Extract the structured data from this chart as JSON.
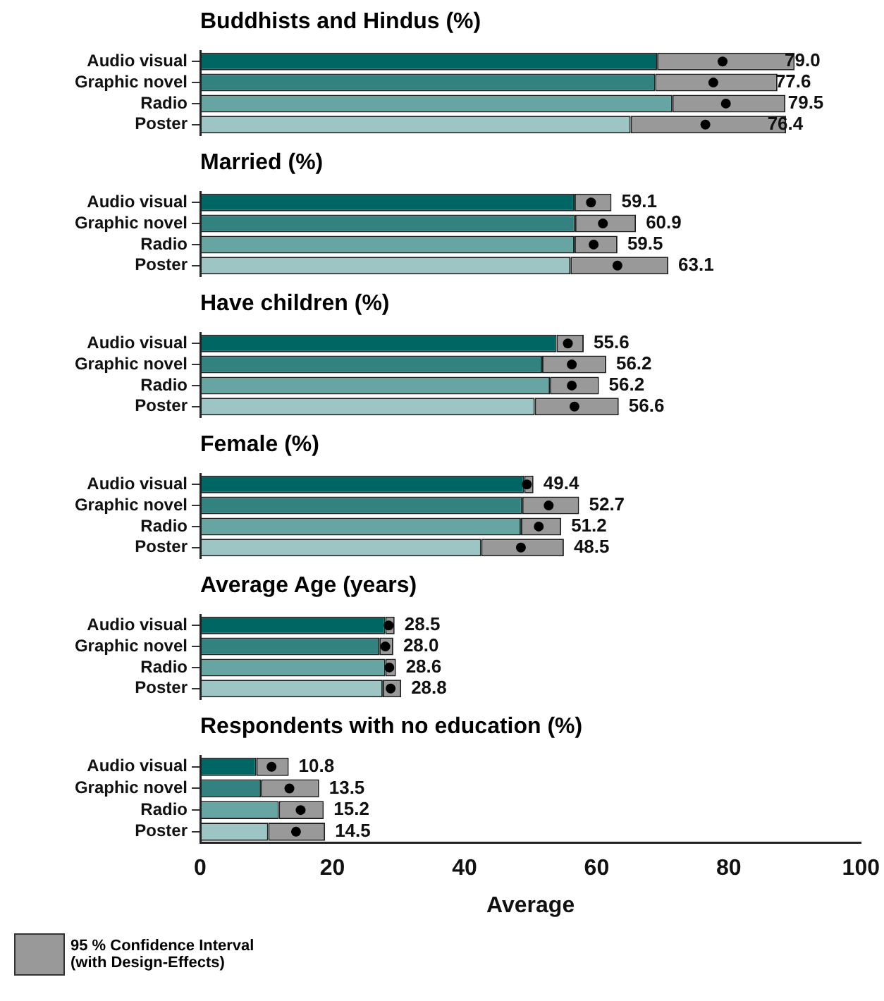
{
  "chart_data": [
    {
      "type": "bar",
      "orientation": "horizontal",
      "stacked": true,
      "title": "Buddhists and Hindus (%)",
      "categories": [
        "Audio visual",
        "Graphic novel",
        "Radio",
        "Poster"
      ],
      "xlim": [
        0,
        100
      ],
      "tick_labels": "y",
      "series": [
        {
          "values": [
            69.1,
            68.8,
            71.4,
            65.1
          ],
          "colors": [
            "#006664",
            "#33827f",
            "#66a5a2",
            "#9cc5c3"
          ]
        },
        {
          "color": "#999999",
          "values": [
            20.8,
            18.5,
            17.1,
            23.5
          ]
        },
        {
          "type": "scatter",
          "color": "#000000",
          "marker": "circle",
          "values": [
            79.0,
            77.6,
            79.5,
            76.4
          ],
          "value_labels": [
            "79.0",
            "77.6",
            "79.5",
            "76.4"
          ]
        }
      ]
    },
    {
      "type": "bar",
      "orientation": "horizontal",
      "stacked": true,
      "title": "Married (%)",
      "categories": [
        "Audio visual",
        "Graphic novel",
        "Radio",
        "Poster"
      ],
      "xlim": [
        0,
        100
      ],
      "tick_labels": "y",
      "series": [
        {
          "values": [
            56.6,
            56.7,
            56.6,
            56.0
          ],
          "colors": [
            "#006664",
            "#33827f",
            "#66a5a2",
            "#9cc5c3"
          ]
        },
        {
          "color": "#999999",
          "values": [
            5.6,
            9.2,
            6.5,
            14.8
          ]
        },
        {
          "type": "scatter",
          "color": "#000000",
          "marker": "circle",
          "values": [
            59.1,
            60.9,
            59.5,
            63.1
          ],
          "value_labels": [
            "59.1",
            "60.9",
            "59.5",
            "63.1"
          ]
        }
      ]
    },
    {
      "type": "bar",
      "orientation": "horizontal",
      "stacked": true,
      "title": "Have children (%)",
      "categories": [
        "Audio visual",
        "Graphic novel",
        "Radio",
        "Poster"
      ],
      "xlim": [
        0,
        100
      ],
      "tick_labels": "y",
      "series": [
        {
          "values": [
            53.9,
            51.7,
            52.9,
            50.6
          ],
          "colors": [
            "#006664",
            "#33827f",
            "#66a5a2",
            "#9cc5c3"
          ]
        },
        {
          "color": "#999999",
          "values": [
            4.1,
            9.7,
            7.4,
            12.7
          ]
        },
        {
          "type": "scatter",
          "color": "#000000",
          "marker": "circle",
          "values": [
            55.6,
            56.2,
            56.2,
            56.6
          ],
          "value_labels": [
            "55.6",
            "56.2",
            "56.2",
            "56.6"
          ]
        }
      ]
    },
    {
      "type": "bar",
      "orientation": "horizontal",
      "stacked": true,
      "title": "Female (%)",
      "categories": [
        "Audio visual",
        "Graphic novel",
        "Radio",
        "Poster"
      ],
      "xlim": [
        0,
        100
      ],
      "tick_labels": "y",
      "series": [
        {
          "values": [
            49.0,
            48.7,
            48.5,
            42.5
          ],
          "colors": [
            "#006664",
            "#33827f",
            "#66a5a2",
            "#9cc5c3"
          ]
        },
        {
          "color": "#999999",
          "values": [
            1.4,
            8.6,
            6.1,
            12.5
          ]
        },
        {
          "type": "scatter",
          "color": "#000000",
          "marker": "circle",
          "values": [
            49.4,
            52.7,
            51.2,
            48.5
          ],
          "value_labels": [
            "49.4",
            "52.7",
            "51.2",
            "48.5"
          ]
        }
      ]
    },
    {
      "type": "bar",
      "orientation": "horizontal",
      "stacked": true,
      "title": "Average Age (years)",
      "categories": [
        "Audio visual",
        "Graphic novel",
        "Radio",
        "Poster"
      ],
      "xlim": [
        0,
        100
      ],
      "tick_labels": "y",
      "series": [
        {
          "values": [
            28.0,
            27.1,
            28.0,
            27.6
          ],
          "colors": [
            "#006664",
            "#33827f",
            "#66a5a2",
            "#9cc5c3"
          ]
        },
        {
          "color": "#999999",
          "values": [
            1.4,
            2.1,
            1.6,
            2.8
          ]
        },
        {
          "type": "scatter",
          "color": "#000000",
          "marker": "circle",
          "values": [
            28.5,
            28.0,
            28.6,
            28.8
          ],
          "value_labels": [
            "28.5",
            "28.0",
            "28.6",
            "28.8"
          ]
        }
      ]
    },
    {
      "type": "bar",
      "orientation": "horizontal",
      "stacked": true,
      "title": "Respondents with no education (%)",
      "categories": [
        "Audio visual",
        "Graphic novel",
        "Radio",
        "Poster"
      ],
      "xlim": [
        0,
        100
      ],
      "xticks": [
        0,
        20,
        40,
        60,
        80,
        100
      ],
      "xlabel": "Average",
      "legend": "bottom left",
      "series": [
        {
          "values": [
            8.5,
            9.2,
            11.9,
            10.3
          ],
          "colors": [
            "#006664",
            "#33827f",
            "#66a5a2",
            "#9cc5c3"
          ]
        },
        {
          "name": "95 % Confidence Interval (with Design-Effects)",
          "color": "#999999",
          "values": [
            4.9,
            8.8,
            6.8,
            8.6
          ]
        },
        {
          "type": "scatter",
          "color": "#000000",
          "marker": "circle",
          "values": [
            10.8,
            13.5,
            15.2,
            14.5
          ],
          "value_labels": [
            "10.8",
            "13.5",
            "15.2",
            "14.5"
          ]
        }
      ]
    }
  ]
}
